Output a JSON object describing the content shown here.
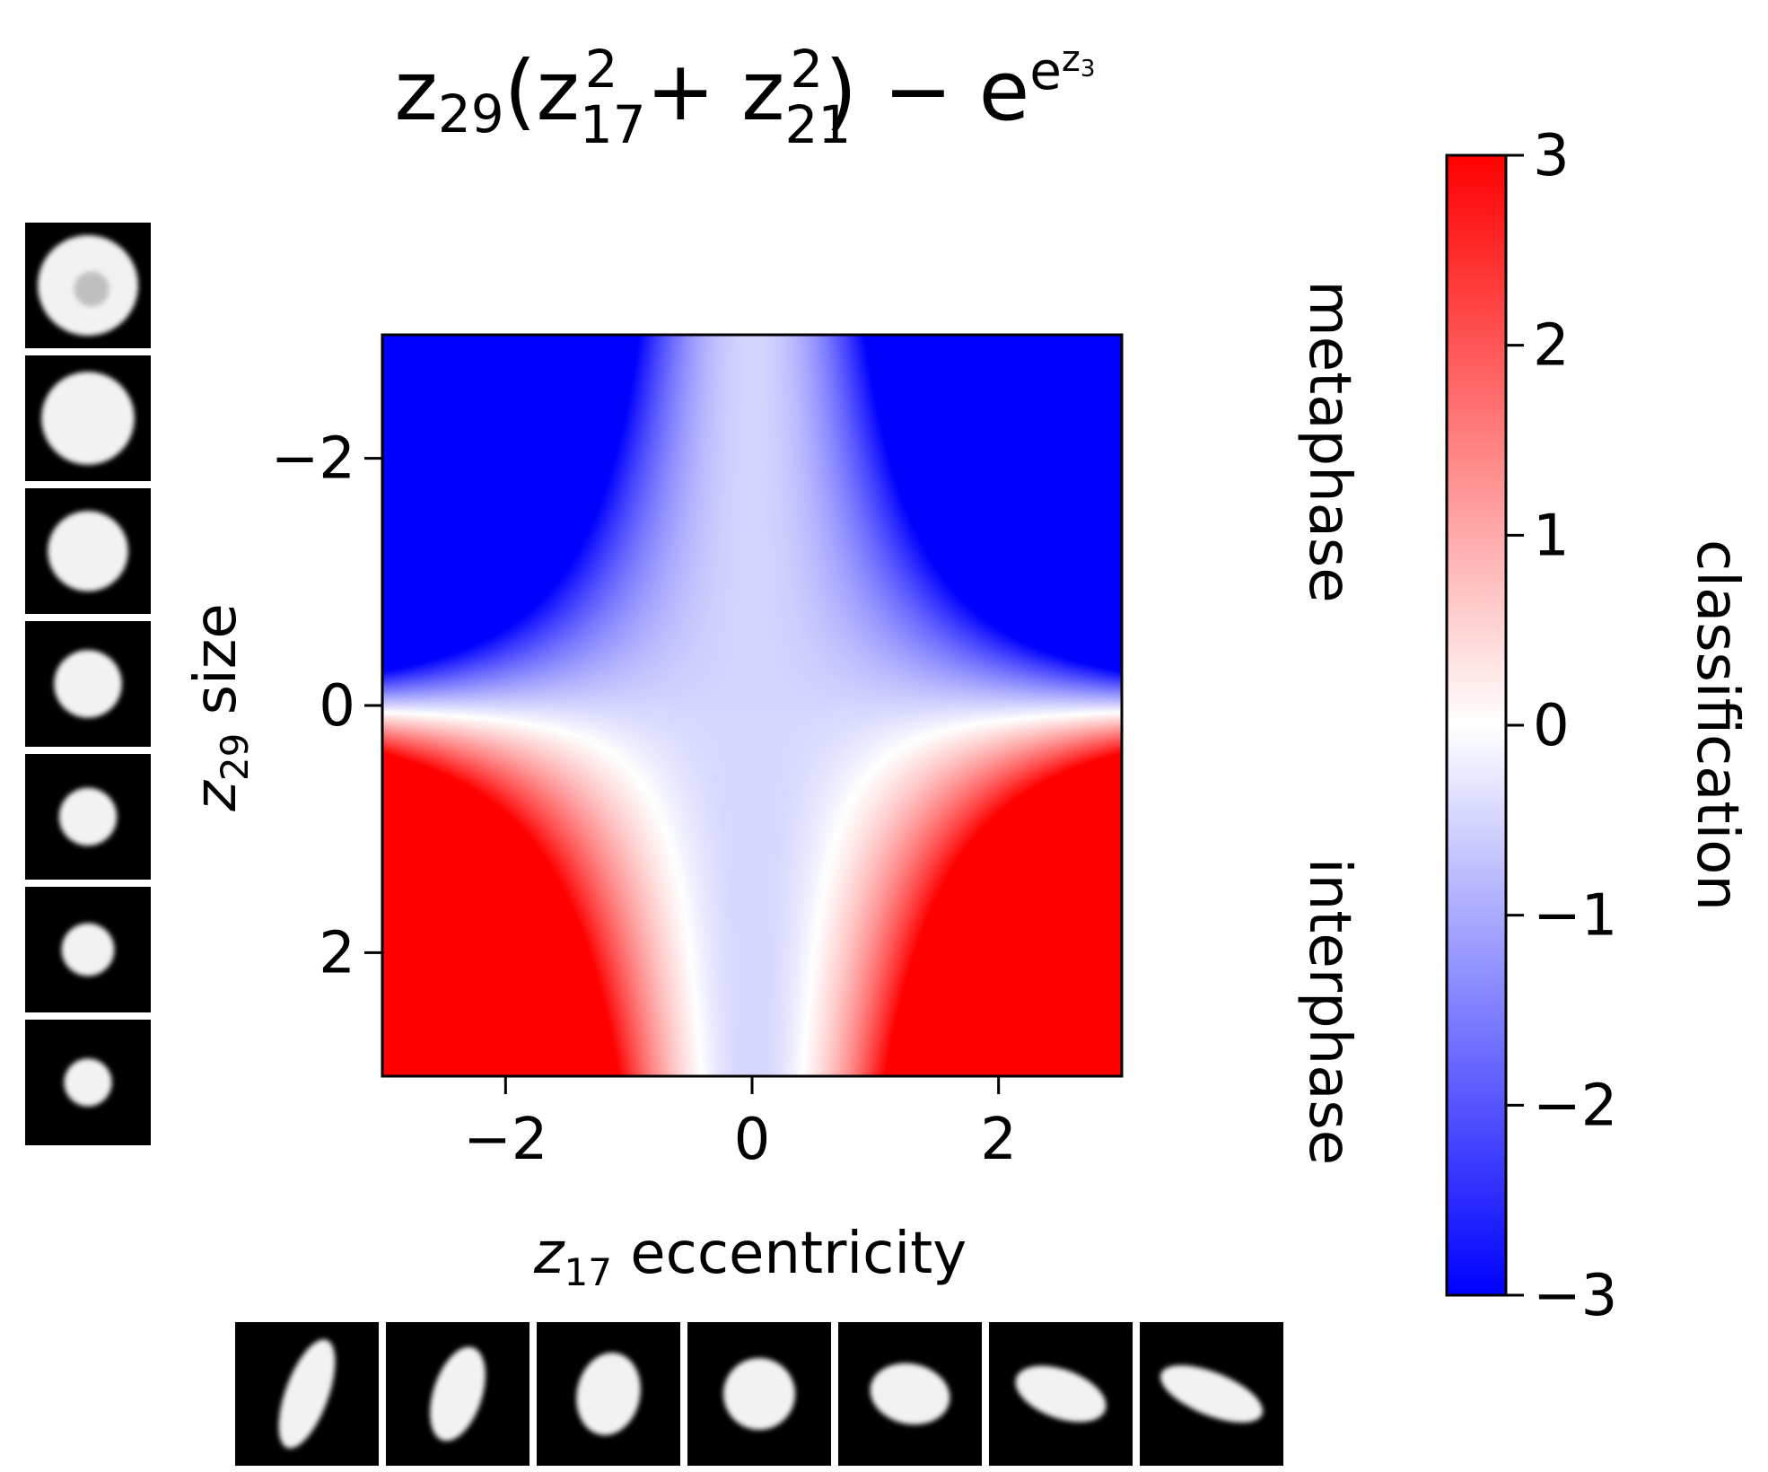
{
  "chart_data": {
    "type": "heatmap",
    "title": {
      "text": "z29(z17^2 + z21^2) − e^(e^z3)",
      "display": {
        "v": "z",
        "s1": "29",
        "p1": "(",
        "v2": "z",
        "s2": "17",
        "e2": "2",
        "plus": " + ",
        "v3": "z",
        "s3": "21",
        "e3": "2",
        "p2": ") − ",
        "base": "e",
        "exp": "e",
        "exp2": "z",
        "exp3": "3"
      }
    },
    "xlabel": {
      "var": "z",
      "sub": "17",
      "text": " eccentricity"
    },
    "ylabel": {
      "var": "z",
      "sub": "29",
      "text": " size"
    },
    "xlim": [
      -3,
      3
    ],
    "ylim": [
      3,
      -3
    ],
    "y_inverted": true,
    "xticks": [
      -2,
      0,
      2
    ],
    "yticks": [
      -2,
      0,
      2
    ],
    "xtick_labels": [
      "−2",
      "0",
      "2"
    ],
    "ytick_labels": [
      "−2",
      "0",
      "2"
    ],
    "function": "value = y * x^2 - 0.5 (z21 and z3 held fixed)",
    "grid": false,
    "colorbar": {
      "label": "classification",
      "cmap": "bwr",
      "range": [
        -3,
        3
      ],
      "ticks": [
        3,
        2,
        1,
        0,
        -1,
        -2,
        -3
      ],
      "tick_labels": [
        "3",
        "2",
        "1",
        "0",
        "−1",
        "−2",
        "−3"
      ],
      "colors": {
        "low": "#0000ff",
        "mid": "#ffffff",
        "high": "#ff0000"
      }
    },
    "region_labels": {
      "upper": "metaphase",
      "lower": "interphase"
    },
    "y_thumbnails": {
      "count": 7,
      "description": "cell images of decreasing size"
    },
    "x_thumbnails": {
      "count": 7,
      "description": "cell images of increasing eccentricity"
    }
  }
}
